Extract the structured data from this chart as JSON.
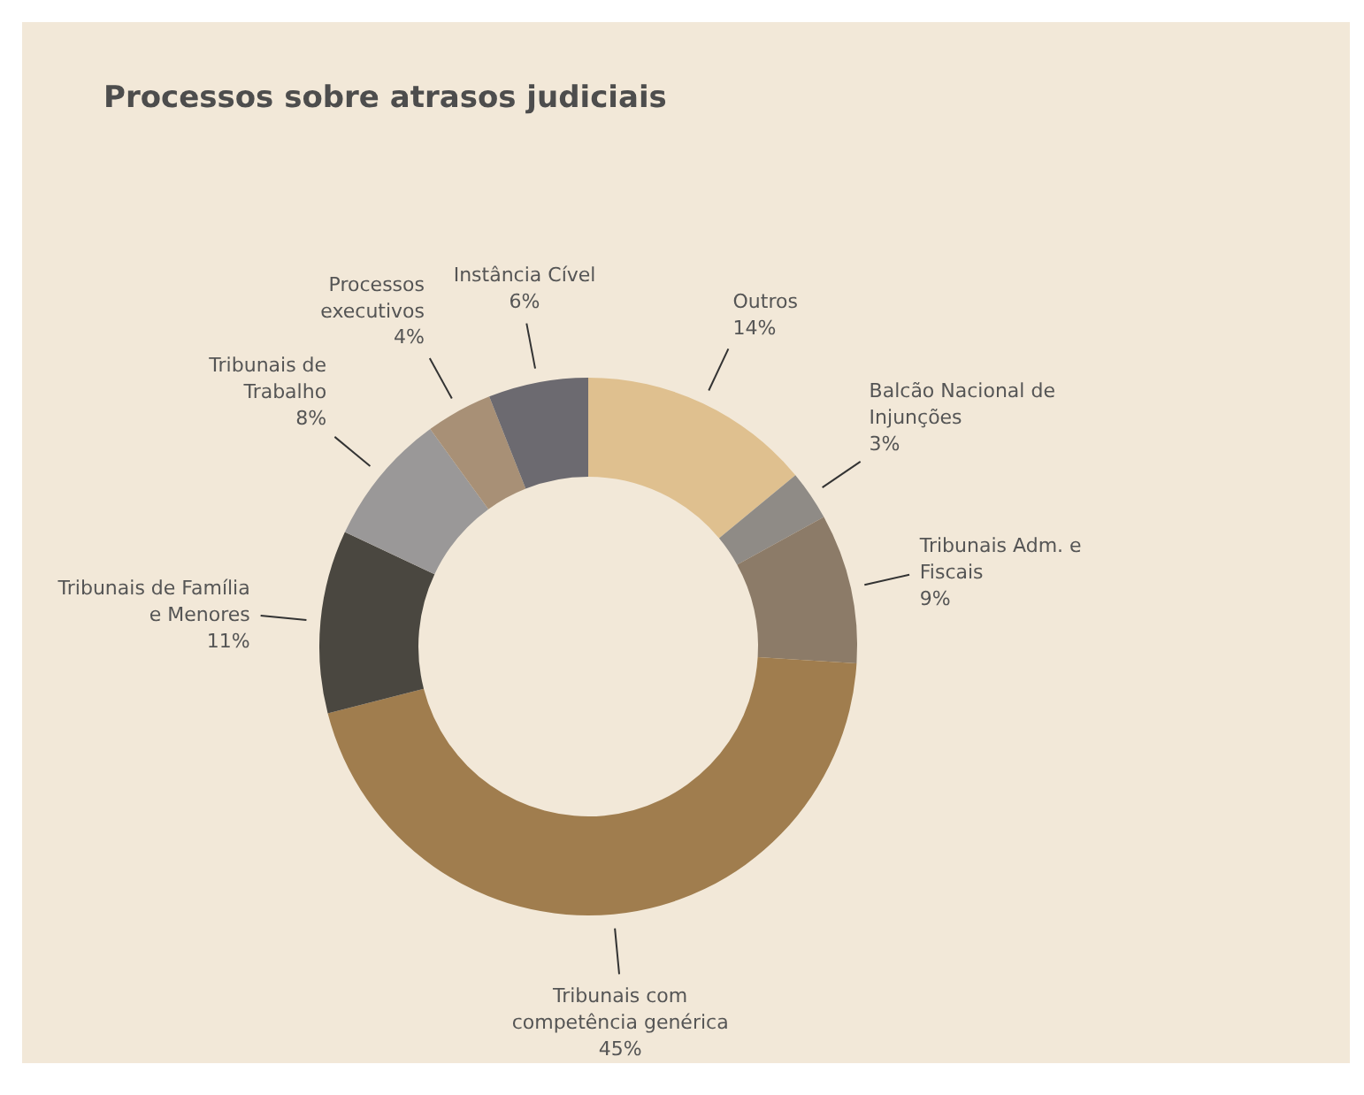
{
  "chart_data": {
    "type": "donut",
    "title": "Processos sobre atrasos judiciais",
    "categories": [
      "Outros",
      "Balcão Nacional de\nInjunções",
      "Tribunais Adm. e\nFiscais",
      "Tribunais com\ncompetência genérica",
      "Tribunais de Família\ne Menores",
      "Tribunais de\nTrabalho",
      "Processos\nexecutivos",
      "Instância Cível"
    ],
    "values": [
      14,
      3,
      9,
      45,
      11,
      8,
      4,
      6
    ],
    "colors": [
      "#dfc08f",
      "#8f8b86",
      "#8c7b68",
      "#a07d4e",
      "#4a4740",
      "#9a9898",
      "#a89076",
      "#6c6a70"
    ],
    "value_labels": [
      "14%",
      "3%",
      "9%",
      "45%",
      "11%",
      "8%",
      "4%",
      "6%"
    ]
  }
}
